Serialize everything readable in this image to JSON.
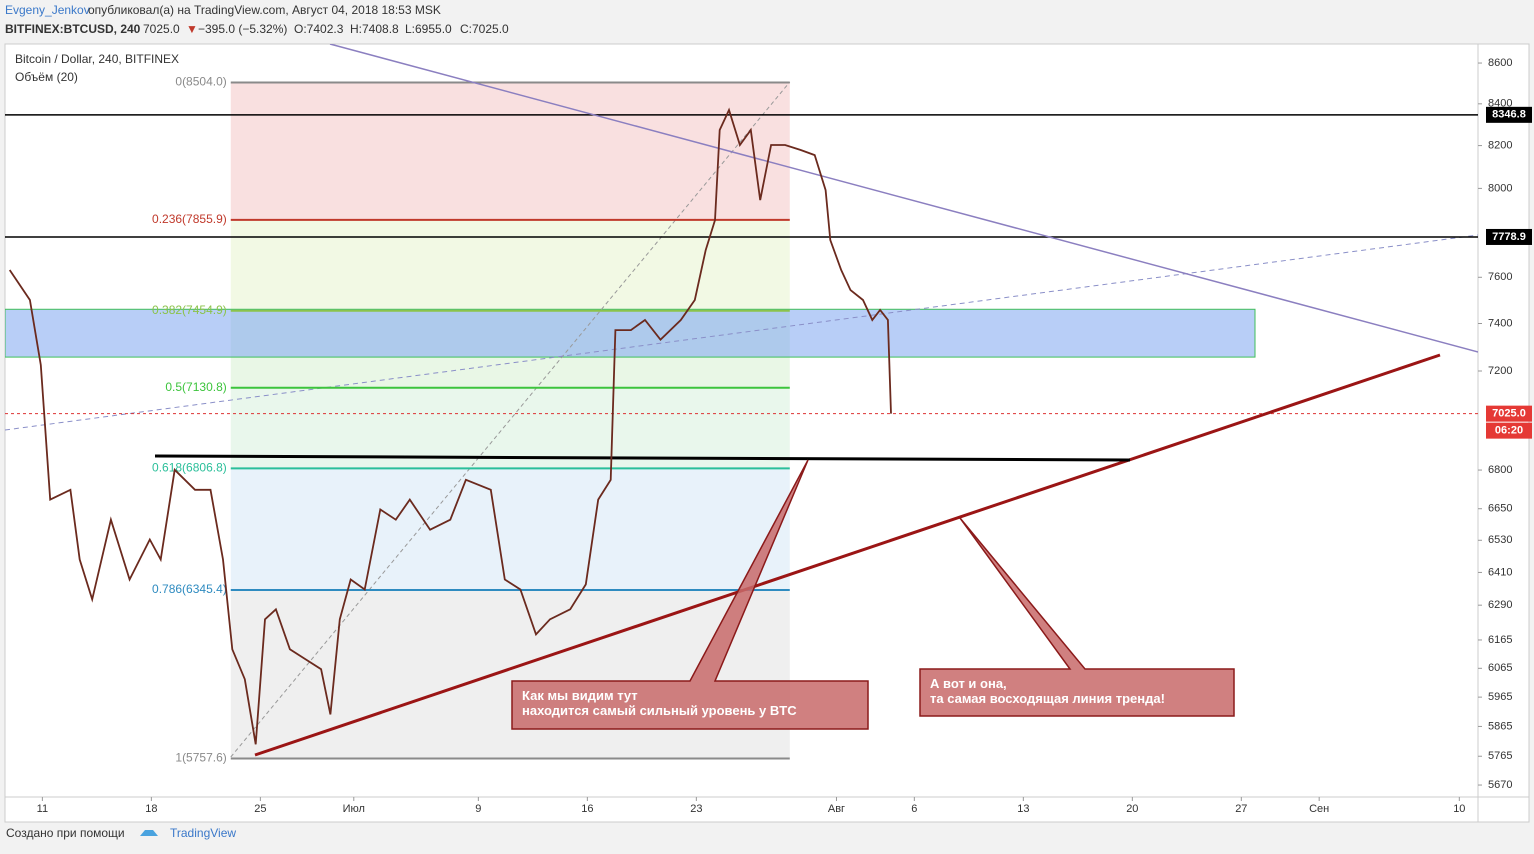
{
  "header": {
    "author": "Evgeny_Jenkov",
    "published": "опубликовал(а) на TradingView.com, Август 04, 2018 18:53 MSK",
    "symbol": "BITFINEX:BTCUSD, 240",
    "last": "7025.0",
    "arrow": "▼",
    "change": "−395.0 (−5.32%)",
    "open": "O:7402.3",
    "high": "H:7408.8",
    "low": "L:6955.0",
    "close": "C:7025.0"
  },
  "chart_data": {
    "type": "line",
    "title": "Bitcoin / Dollar, 240, BITFINEX",
    "subtitle": "Объём (20)",
    "x": [
      -2.1,
      -0.8,
      -0.1,
      0.5,
      1.8,
      2.4,
      3.2,
      4.4,
      5.6,
      6.9,
      7.6,
      8.5,
      9.8,
      10.8,
      11.6,
      12.2,
      13.0,
      13.7,
      14.3,
      15.0,
      15.9,
      16.9,
      17.9,
      18.5,
      19.1,
      19.8,
      20.7,
      21.7,
      22.7,
      23.6,
      24.9,
      26.2,
      27.2,
      28.8,
      29.7,
      30.7,
      31.7,
      32.6,
      33.9,
      34.9,
      35.7,
      36.5,
      36.8,
      37.8,
      38.7,
      39.7,
      41.0,
      41.9,
      42.6,
      43.2,
      43.5,
      44.1,
      44.8,
      45.5,
      46.1,
      46.8,
      47.7,
      48.7,
      49.6,
      50.3,
      50.6,
      51.3,
      51.9,
      52.7,
      53.3,
      53.8,
      54.3,
      54.5
    ],
    "values": [
      7632,
      7501,
      7225,
      6685,
      6723,
      6458,
      6311,
      6608,
      6384,
      6533,
      6458,
      6801,
      6723,
      6723,
      6458,
      6132,
      6027,
      5805,
      6239,
      6275,
      6132,
      6097,
      6062,
      5906,
      6239,
      6384,
      6347,
      6647,
      6608,
      6685,
      6570,
      6608,
      6762,
      6723,
      6384,
      6347,
      6185,
      6239,
      6275,
      6366,
      6685,
      6762,
      7372,
      7372,
      7415,
      7331,
      7415,
      7501,
      7720,
      7855,
      8274,
      8370,
      8203,
      8274,
      7946,
      8203,
      8203,
      8179,
      8155,
      7992,
      7765,
      7632,
      7544,
      7501,
      7415,
      7458,
      7415,
      7025
    ],
    "color": "#6b2a1e",
    "log_scale": true,
    "ylim": [
      5631,
      8695
    ],
    "yticks": [
      5670,
      5765,
      5865,
      5965,
      6065,
      6165,
      6290,
      6410,
      6530,
      6650,
      6800,
      7200,
      7400,
      7600,
      8000,
      8200,
      8400,
      8600
    ],
    "xlim": [
      -2.4,
      92.2
    ],
    "xticks": [
      {
        "value": 0,
        "label": "11"
      },
      {
        "value": 7,
        "label": "18"
      },
      {
        "value": 14,
        "label": "25"
      },
      {
        "value": 20,
        "label": "Июл"
      },
      {
        "value": 28,
        "label": "9"
      },
      {
        "value": 35,
        "label": "16"
      },
      {
        "value": 42,
        "label": "23"
      },
      {
        "value": 51,
        "label": "Авг"
      },
      {
        "value": 56,
        "label": "6"
      },
      {
        "value": 63,
        "label": "13"
      },
      {
        "value": 70,
        "label": "20"
      },
      {
        "value": 77,
        "label": "27"
      },
      {
        "value": 82,
        "label": "Сен"
      },
      {
        "value": 91,
        "label": "10"
      }
    ],
    "fib_range": [
      12.1,
      48.0
    ],
    "fib_levels": [
      {
        "value": 8504.0,
        "label": "0(8504.0)",
        "color": "#8a8a8a"
      },
      {
        "value": 7855.9,
        "label": "0.236(7855.9)",
        "color": "#c0392b"
      },
      {
        "value": 7454.9,
        "label": "0.382(7454.9)",
        "color": "#8bc34a"
      },
      {
        "value": 7130.8,
        "label": "0.5(7130.8)",
        "color": "#3cc43c"
      },
      {
        "value": 6806.8,
        "label": "0.618(6806.8)",
        "color": "#2bbf9a"
      },
      {
        "value": 6345.4,
        "label": "0.786(6345.4)",
        "color": "#2e8bc0"
      },
      {
        "value": 5757.6,
        "label": "1(5757.6)",
        "color": "#8a8a8a"
      }
    ],
    "support_zone": [
      7258,
      7461
    ],
    "hlines": [
      8346.8,
      7778.9
    ],
    "current": {
      "value": 7025.0,
      "label": "7025.0"
    },
    "timer": "06:20",
    "annotations": [
      "Как мы видим тут\nнаходится самый сильный уровень у BTC",
      "А вот и она,\nта самая восходящая линия тренда!"
    ]
  },
  "footer": {
    "text": "Создано при помощи",
    "brand": "TradingView"
  }
}
